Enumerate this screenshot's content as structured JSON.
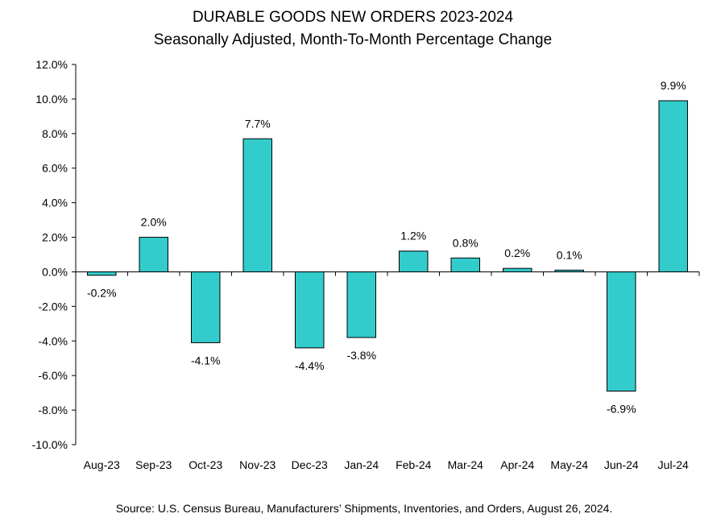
{
  "chart_data": {
    "type": "bar",
    "title": "DURABLE GOODS NEW ORDERS 2023-2024",
    "subtitle": "Seasonally Adjusted,  Month-To-Month Percentage Change",
    "categories": [
      "Aug-23",
      "Sep-23",
      "Oct-23",
      "Nov-23",
      "Dec-23",
      "Jan-24",
      "Feb-24",
      "Mar-24",
      "Apr-24",
      "May-24",
      "Jun-24",
      "Jul-24"
    ],
    "values": [
      -0.2,
      2.0,
      -4.1,
      7.7,
      -4.4,
      -3.8,
      1.2,
      0.8,
      0.2,
      0.1,
      -6.9,
      9.9
    ],
    "data_labels": [
      "-0.2%",
      "2.0%",
      "-4.1%",
      "7.7%",
      "-4.4%",
      "-3.8%",
      "1.2%",
      "0.8%",
      "0.2%",
      "0.1%",
      "-6.9%",
      "9.9%"
    ],
    "ylim": [
      -10,
      12
    ],
    "ytick_values": [
      12,
      10,
      8,
      6,
      4,
      2,
      0,
      -2,
      -4,
      -6,
      -8,
      -10
    ],
    "ytick_labels": [
      "12.0%",
      "10.0%",
      "8.0%",
      "6.0%",
      "4.0%",
      "2.0%",
      "0.0%",
      "-2.0%",
      "-4.0%",
      "-6.0%",
      "-8.0%",
      "-10.0%"
    ],
    "xlabel": "",
    "ylabel": "",
    "grid": false,
    "legend": "none",
    "bar_color": "#33CCCC",
    "bar_outline_color": "#000000",
    "source": "Source: U.S. Census Bureau, Manufacturers’ Shipments, Inventories, and Orders, August 26, 2024."
  }
}
